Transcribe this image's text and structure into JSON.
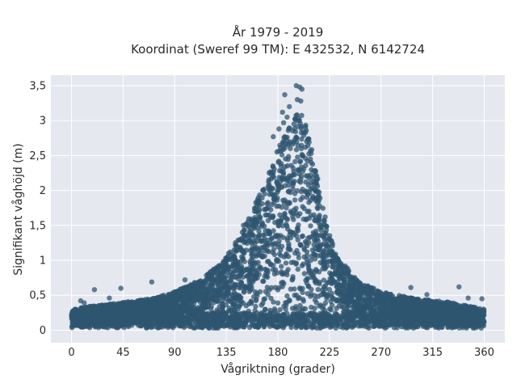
{
  "chart_data": {
    "type": "scatter",
    "title_line1": "År 1979 - 2019",
    "title_line2": "Koordinat (Sweref 99 TM): E 432532, N 6142724",
    "xlabel": "Vågriktning (grader)",
    "ylabel": "Signifikant våghöjd (m)",
    "xlim": [
      -18,
      378
    ],
    "ylim": [
      -0.18,
      3.65
    ],
    "x_ticks": [
      0,
      45,
      90,
      135,
      180,
      225,
      270,
      315,
      360
    ],
    "x_tick_labels": [
      "0",
      "45",
      "90",
      "135",
      "180",
      "225",
      "270",
      "315",
      "360"
    ],
    "y_ticks": [
      0,
      0.5,
      1,
      1.5,
      2,
      2.5,
      3,
      3.5
    ],
    "y_tick_labels": [
      "0",
      "0,5",
      "1",
      "1,5",
      "2",
      "2,5",
      "3",
      "3,5"
    ],
    "grid": true,
    "legend": "none",
    "marker_color": "#2f5670",
    "marker_opacity": 0.75,
    "background_color": "#e5e8ef",
    "envelope": {
      "direction_deg": [
        0,
        20,
        45,
        70,
        90,
        110,
        130,
        145,
        160,
        170,
        180,
        190,
        200,
        210,
        220,
        230,
        250,
        270,
        300,
        330,
        360
      ],
      "typical_max_height_m": [
        0.3,
        0.35,
        0.4,
        0.45,
        0.55,
        0.7,
        0.95,
        1.3,
        1.8,
        2.2,
        2.6,
        2.9,
        3.2,
        2.6,
        1.7,
        1.1,
        0.7,
        0.55,
        0.45,
        0.4,
        0.3
      ]
    },
    "outliers": [
      {
        "x": 196,
        "y": 3.5
      },
      {
        "x": 199,
        "y": 3.48
      },
      {
        "x": 201,
        "y": 3.45
      },
      {
        "x": 197,
        "y": 3.3
      },
      {
        "x": 186,
        "y": 3.37
      },
      {
        "x": 200,
        "y": 3.28
      },
      {
        "x": 190,
        "y": 3.2
      },
      {
        "x": 184,
        "y": 3.12
      },
      {
        "x": 188,
        "y": 3.05
      },
      {
        "x": 185,
        "y": 2.97
      },
      {
        "x": 181,
        "y": 2.88
      },
      {
        "x": 176,
        "y": 2.77
      },
      {
        "x": 205,
        "y": 2.7
      },
      {
        "x": 212,
        "y": 2.02
      },
      {
        "x": 150,
        "y": 1.5
      },
      {
        "x": 137,
        "y": 1.1
      },
      {
        "x": 119,
        "y": 0.8
      },
      {
        "x": 99,
        "y": 0.72
      },
      {
        "x": 70,
        "y": 0.69
      },
      {
        "x": 43,
        "y": 0.6
      },
      {
        "x": 20,
        "y": 0.58
      },
      {
        "x": 8,
        "y": 0.42
      },
      {
        "x": 11,
        "y": 0.39
      },
      {
        "x": 33,
        "y": 0.46
      },
      {
        "x": 251,
        "y": 0.6
      },
      {
        "x": 243,
        "y": 0.58
      },
      {
        "x": 296,
        "y": 0.61
      },
      {
        "x": 310,
        "y": 0.51
      },
      {
        "x": 338,
        "y": 0.62
      },
      {
        "x": 346,
        "y": 0.46
      },
      {
        "x": 358,
        "y": 0.45
      }
    ]
  }
}
